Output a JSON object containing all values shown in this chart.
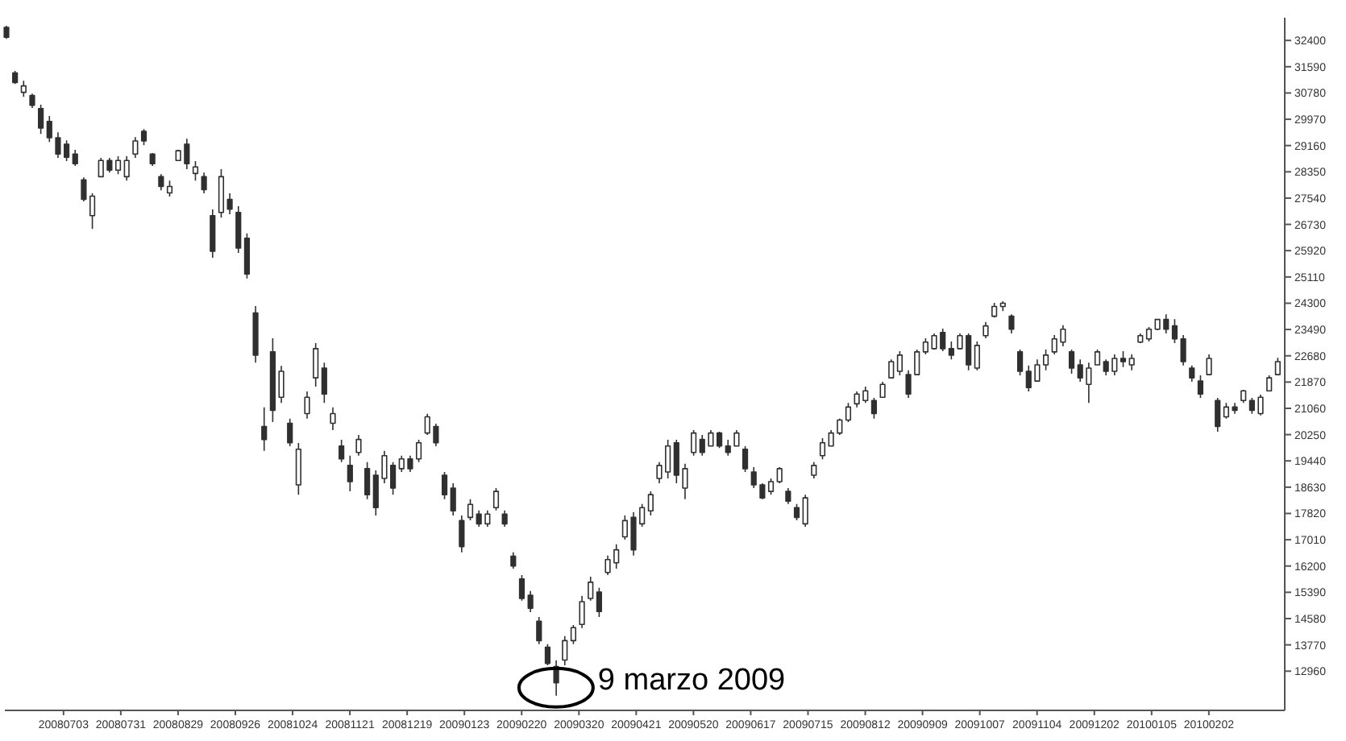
{
  "chart_data": {
    "type": "candlestick",
    "color": "#303030",
    "categories": [
      null,
      null,
      null,
      null,
      null,
      null,
      null,
      null,
      null,
      null,
      null,
      null,
      null,
      null,
      null,
      null,
      null,
      null,
      null,
      null,
      "20080703",
      null,
      null,
      null,
      null,
      null,
      null,
      null,
      null,
      null,
      null,
      null,
      null,
      null,
      null,
      null,
      null,
      null,
      null,
      null,
      "20080731",
      null,
      null,
      null,
      null,
      null,
      null,
      null,
      null,
      null,
      null,
      null,
      null,
      null,
      null,
      null,
      null,
      null,
      null,
      null,
      "20080829",
      null,
      null,
      null,
      null,
      null,
      null,
      null,
      null,
      null,
      null,
      null,
      null,
      null,
      null,
      null,
      null,
      null,
      null,
      null,
      "20080926",
      null,
      null,
      null,
      null,
      null,
      null,
      null,
      null,
      null,
      null,
      null,
      null,
      null,
      null,
      null,
      null,
      null,
      null,
      null,
      "20081024",
      null,
      null,
      null,
      null,
      null,
      null,
      null,
      null,
      null,
      null,
      null,
      null,
      null,
      null,
      null,
      null,
      null,
      null,
      null,
      "20081121",
      null,
      null,
      null,
      null,
      null,
      null,
      null,
      null,
      null,
      null,
      null,
      null,
      null,
      null,
      null,
      null,
      null,
      null,
      null,
      "20081219",
      null,
      null,
      null,
      null,
      null,
      null,
      null,
      null,
      null,
      null,
      null,
      null,
      null,
      null,
      null,
      null,
      null,
      null,
      null,
      "20090123",
      null,
      null,
      null,
      null,
      null,
      null,
      null,
      null,
      null,
      null,
      null,
      null,
      null,
      null,
      null,
      null,
      null,
      null,
      null,
      "20090220",
      null,
      null,
      null,
      null,
      null,
      null,
      null,
      null,
      null,
      null,
      null,
      null,
      null,
      null,
      null,
      null,
      null,
      null,
      null,
      "20090320",
      null,
      null,
      null,
      null,
      null,
      null,
      null,
      null,
      null,
      null,
      null,
      null,
      null,
      null,
      null,
      null,
      null,
      null,
      null,
      "20090421",
      null,
      null,
      null,
      null,
      null,
      null,
      null,
      null,
      null,
      null,
      null,
      null,
      null,
      null,
      null,
      null,
      null,
      null,
      null,
      "20090520",
      null,
      null,
      null,
      null,
      null,
      null,
      null,
      null,
      null,
      null,
      null,
      null,
      null,
      null,
      null,
      null,
      null,
      null,
      null,
      "20090617",
      null,
      null,
      null,
      null,
      null,
      null,
      null,
      null,
      null,
      null,
      null,
      null,
      null,
      null,
      null,
      null,
      null,
      null,
      null,
      "20090715",
      null,
      null,
      null,
      null,
      null,
      null,
      null,
      null,
      null,
      null,
      null,
      null,
      null,
      null,
      null,
      null,
      null,
      null,
      null,
      "20090812",
      null,
      null,
      null,
      null,
      null,
      null,
      null,
      null,
      null,
      null,
      null,
      null,
      null,
      null,
      null,
      null,
      null,
      null,
      null,
      "20090909",
      null,
      null,
      null,
      null,
      null,
      null,
      null,
      null,
      null,
      null,
      null,
      null,
      null,
      null,
      null,
      null,
      null,
      null,
      null,
      "20091007",
      null,
      null,
      null,
      null,
      null,
      null,
      null,
      null,
      null,
      null,
      null,
      null,
      null,
      null,
      null,
      null,
      null,
      null,
      null,
      "20091104",
      null,
      null,
      null,
      null,
      null,
      null,
      null,
      null,
      null,
      null,
      null,
      null,
      null,
      null,
      null,
      null,
      null,
      null,
      null,
      "20091202",
      null,
      null,
      null,
      null,
      null,
      null,
      null,
      null,
      null,
      null,
      null,
      null,
      null,
      null,
      null,
      null,
      null,
      null,
      null,
      "20100105",
      null,
      null,
      null,
      null,
      null,
      null,
      null,
      null,
      null,
      null,
      null,
      null,
      null,
      null,
      null,
      null,
      null,
      null,
      null,
      "20100202",
      null,
      null,
      null,
      null,
      null,
      null,
      null,
      null,
      null,
      null,
      null,
      null,
      null,
      null,
      null,
      null,
      null,
      null,
      null,
      null,
      null,
      null,
      null,
      null,
      null,
      null
    ],
    "ohlc": [
      [
        32800,
        32850,
        32450,
        32500
      ],
      null,
      null,
      [
        31400,
        31460,
        31060,
        31100
      ],
      null,
      null,
      [
        30800,
        31160,
        30660,
        31000
      ],
      null,
      null,
      [
        30700,
        30760,
        30320,
        30400
      ],
      null,
      null,
      [
        30300,
        30420,
        29520,
        29700
      ],
      null,
      null,
      [
        29900,
        30070,
        29270,
        29400
      ],
      null,
      null,
      [
        29400,
        29570,
        28780,
        28900
      ],
      null,
      null,
      [
        29200,
        29320,
        28680,
        28800
      ],
      null,
      null,
      [
        28900,
        29030,
        28530,
        28600
      ],
      null,
      null,
      [
        28100,
        28180,
        27440,
        27500
      ],
      null,
      null,
      [
        27000,
        27690,
        26590,
        27600
      ],
      null,
      null,
      [
        28200,
        28780,
        28180,
        28700
      ],
      null,
      null,
      [
        28700,
        28780,
        28330,
        28400
      ],
      null,
      null,
      [
        28400,
        28830,
        28280,
        28700
      ],
      null,
      null,
      [
        28200,
        28830,
        28080,
        28700
      ],
      null,
      null,
      [
        28900,
        29420,
        28780,
        29300
      ],
      null,
      null,
      [
        29600,
        29670,
        29170,
        29300
      ],
      null,
      null,
      [
        28900,
        28930,
        28530,
        28600
      ],
      null,
      null,
      [
        28200,
        28280,
        27780,
        27900
      ],
      null,
      null,
      [
        27700,
        28080,
        27590,
        27900
      ],
      null,
      null,
      [
        28700,
        29030,
        28680,
        29000
      ],
      null,
      null,
      [
        29200,
        29370,
        28430,
        28600
      ],
      null,
      null,
      [
        28300,
        28680,
        28080,
        28500
      ],
      null,
      null,
      [
        28200,
        28330,
        27690,
        27800
      ],
      null,
      null,
      [
        27000,
        27190,
        25700,
        25900
      ],
      null,
      null,
      [
        27100,
        28430,
        26940,
        28200
      ],
      null,
      null,
      [
        27500,
        27690,
        27040,
        27200
      ],
      null,
      null,
      [
        27100,
        27290,
        25850,
        26000
      ],
      null,
      null,
      [
        26300,
        26450,
        25060,
        25200
      ],
      null,
      null,
      [
        24000,
        24210,
        22470,
        22700
      ],
      null,
      null,
      [
        20500,
        21090,
        19750,
        20100
      ],
      null,
      null,
      [
        22800,
        23220,
        20640,
        21000
      ],
      null,
      null,
      [
        21400,
        22370,
        21230,
        22200
      ],
      null,
      null,
      [
        20600,
        20740,
        19890,
        20000
      ],
      null,
      null,
      [
        18700,
        19990,
        18400,
        19800
      ],
      null,
      null,
      [
        20900,
        21580,
        20740,
        21400
      ],
      null,
      null,
      [
        22000,
        23070,
        21730,
        22900
      ],
      null,
      null,
      [
        22300,
        22470,
        21230,
        21500
      ],
      null,
      null,
      [
        20600,
        21090,
        20390,
        20900
      ],
      null,
      null,
      [
        19900,
        20090,
        19400,
        19500
      ],
      null,
      null,
      [
        19300,
        19600,
        18500,
        18800
      ],
      null,
      null,
      [
        19700,
        20240,
        19600,
        20100
      ],
      null,
      null,
      [
        19200,
        19400,
        18260,
        18400
      ],
      null,
      null,
      [
        19000,
        19150,
        17760,
        18000
      ],
      null,
      null,
      [
        18900,
        19750,
        18750,
        19600
      ],
      null,
      null,
      [
        19300,
        19400,
        18400,
        18600
      ],
      null,
      null,
      [
        19200,
        19600,
        19100,
        19500
      ],
      null,
      null,
      [
        19500,
        19600,
        19100,
        19200
      ],
      null,
      null,
      [
        19500,
        20090,
        19400,
        20000
      ],
      null,
      null,
      [
        20300,
        20890,
        20240,
        20800
      ],
      null,
      null,
      [
        20500,
        20590,
        19890,
        20000
      ],
      null,
      null,
      [
        19000,
        19100,
        18260,
        18400
      ],
      null,
      null,
      [
        18600,
        18750,
        17760,
        17900
      ],
      null,
      null,
      [
        17600,
        17760,
        16620,
        16800
      ],
      null,
      null,
      [
        17700,
        18260,
        17610,
        18100
      ],
      null,
      null,
      [
        17800,
        17910,
        17410,
        17500
      ],
      null,
      null,
      [
        17500,
        17910,
        17410,
        17800
      ],
      null,
      null,
      [
        18000,
        18600,
        17910,
        18500
      ],
      null,
      null,
      [
        17800,
        17910,
        17410,
        17500
      ],
      null,
      null,
      [
        16500,
        16620,
        16120,
        16200
      ],
      null,
      null,
      [
        15800,
        15920,
        15130,
        15200
      ],
      null,
      null,
      [
        15300,
        15430,
        14780,
        14900
      ],
      null,
      null,
      [
        14500,
        14630,
        13790,
        13900
      ],
      null,
      null,
      [
        13700,
        13790,
        13140,
        13200
      ],
      null,
      null,
      [
        13100,
        13290,
        12200,
        12600
      ],
      null,
      null,
      [
        13300,
        14040,
        13140,
        13900
      ],
      null,
      null,
      [
        13900,
        14380,
        13790,
        14300
      ],
      null,
      null,
      [
        14400,
        15280,
        14290,
        15100
      ],
      null,
      null,
      [
        15200,
        15870,
        15130,
        15700
      ],
      null,
      null,
      [
        15400,
        15530,
        14630,
        14800
      ],
      null,
      null,
      [
        16000,
        16520,
        15920,
        16400
      ],
      null,
      null,
      [
        16300,
        16870,
        16120,
        16700
      ],
      null,
      null,
      [
        17100,
        17760,
        17010,
        17600
      ],
      null,
      null,
      [
        17700,
        17860,
        16520,
        16700
      ],
      null,
      null,
      [
        17500,
        18110,
        17410,
        18000
      ],
      null,
      null,
      [
        17900,
        18500,
        17760,
        18400
      ],
      null,
      null,
      [
        18900,
        19400,
        18750,
        19300
      ],
      null,
      null,
      [
        19100,
        20090,
        18900,
        19900
      ],
      null,
      null,
      [
        20000,
        20090,
        18750,
        19000
      ],
      null,
      null,
      [
        18600,
        19350,
        18260,
        19200
      ],
      null,
      null,
      [
        19700,
        20390,
        19600,
        20300
      ],
      null,
      null,
      [
        20100,
        20240,
        19600,
        19700
      ],
      null,
      null,
      [
        19900,
        20390,
        19890,
        20300
      ],
      null,
      null,
      [
        20300,
        20340,
        19840,
        19900
      ],
      null,
      null,
      [
        19900,
        20090,
        19600,
        19700
      ],
      null,
      null,
      [
        19900,
        20390,
        19890,
        20300
      ],
      null,
      null,
      [
        19800,
        19890,
        19100,
        19200
      ],
      null,
      null,
      [
        19100,
        19250,
        18600,
        18700
      ],
      null,
      null,
      [
        18700,
        18750,
        18260,
        18300
      ],
      null,
      null,
      [
        18500,
        18900,
        18400,
        18800
      ],
      null,
      null,
      [
        18800,
        19250,
        18750,
        19200
      ],
      null,
      null,
      [
        18500,
        18600,
        18110,
        18200
      ],
      null,
      null,
      [
        18000,
        18110,
        17610,
        17700
      ],
      null,
      null,
      [
        17500,
        18400,
        17410,
        18300
      ],
      null,
      null,
      [
        19000,
        19400,
        18900,
        19300
      ],
      null,
      null,
      [
        19600,
        20140,
        19490,
        20000
      ],
      null,
      null,
      [
        19900,
        20390,
        19890,
        20300
      ],
      null,
      null,
      [
        20300,
        20740,
        20240,
        20700
      ],
      null,
      null,
      [
        20700,
        21230,
        20640,
        21100
      ],
      null,
      null,
      [
        21200,
        21580,
        21090,
        21500
      ],
      null,
      null,
      [
        21300,
        21730,
        21230,
        21600
      ],
      null,
      null,
      [
        21300,
        21380,
        20740,
        20900
      ],
      null,
      null,
      [
        21400,
        21880,
        21380,
        21800
      ],
      null,
      null,
      [
        22000,
        22570,
        21980,
        22500
      ],
      null,
      null,
      [
        22200,
        22820,
        22080,
        22700
      ],
      null,
      null,
      [
        22100,
        22230,
        21380,
        21500
      ],
      null,
      null,
      [
        22100,
        22870,
        22080,
        22800
      ],
      null,
      null,
      [
        22800,
        23220,
        22720,
        23100
      ],
      null,
      null,
      [
        22900,
        23370,
        22870,
        23300
      ],
      null,
      null,
      [
        23400,
        23520,
        22820,
        22900
      ],
      null,
      null,
      [
        22900,
        23120,
        22570,
        22700
      ],
      null,
      null,
      [
        22900,
        23370,
        22870,
        23300
      ],
      null,
      null,
      [
        23300,
        23370,
        22230,
        22400
      ],
      null,
      null,
      [
        22300,
        23120,
        22230,
        23000
      ],
      null,
      null,
      [
        23300,
        23720,
        23220,
        23600
      ],
      null,
      null,
      [
        23900,
        24310,
        23860,
        24200
      ],
      null,
      null,
      [
        24200,
        24360,
        24060,
        24300
      ],
      null,
      null,
      [
        23900,
        23960,
        23370,
        23500
      ],
      null,
      null,
      [
        22800,
        22870,
        22080,
        22200
      ],
      null,
      null,
      [
        22200,
        22380,
        21580,
        21700
      ],
      null,
      null,
      [
        21900,
        22570,
        21880,
        22400
      ],
      null,
      null,
      [
        22400,
        22870,
        22230,
        22700
      ],
      null,
      null,
      [
        22800,
        23320,
        22720,
        23200
      ],
      null,
      null,
      [
        23100,
        23620,
        22970,
        23500
      ],
      null,
      null,
      [
        22800,
        22870,
        22130,
        22300
      ],
      null,
      null,
      [
        22400,
        22570,
        21880,
        22000
      ],
      null,
      null,
      [
        21800,
        22470,
        21230,
        22300
      ],
      null,
      null,
      [
        22400,
        22870,
        22380,
        22800
      ],
      null,
      null,
      [
        22500,
        22570,
        22080,
        22200
      ],
      null,
      null,
      [
        22200,
        22720,
        22080,
        22600
      ],
      null,
      null,
      [
        22600,
        22820,
        22330,
        22500
      ],
      null,
      null,
      [
        22400,
        22720,
        22230,
        22600
      ],
      null,
      null,
      [
        23100,
        23370,
        23070,
        23300
      ],
      null,
      null,
      [
        23200,
        23570,
        23120,
        23500
      ],
      null,
      null,
      [
        23500,
        23810,
        23470,
        23800
      ],
      null,
      null,
      [
        23800,
        23960,
        23370,
        23500
      ],
      null,
      null,
      [
        23600,
        23810,
        23070,
        23200
      ],
      null,
      null,
      [
        23200,
        23320,
        22380,
        22500
      ],
      null,
      null,
      [
        22300,
        22380,
        21880,
        22000
      ],
      null,
      null,
      [
        21900,
        22080,
        21380,
        21500
      ],
      null,
      null,
      [
        22100,
        22720,
        22080,
        22600
      ],
      null,
      null,
      [
        21300,
        21380,
        20340,
        20500
      ],
      null,
      null,
      [
        20800,
        21230,
        20740,
        21100
      ],
      null,
      null,
      [
        21100,
        21230,
        20890,
        21000
      ],
      null,
      null,
      [
        21300,
        21630,
        21230,
        21600
      ],
      null,
      null,
      [
        21300,
        21380,
        20890,
        21000
      ],
      null,
      null,
      [
        20900,
        21480,
        20840,
        21400
      ],
      null,
      null,
      [
        21600,
        22080,
        21580,
        22000
      ],
      null,
      null,
      [
        22100,
        22620,
        22080,
        22500
      ],
      null,
      null
    ],
    "ylim": [
      11750,
      33100
    ],
    "yticks": [
      12960,
      13770,
      14580,
      15390,
      16200,
      17010,
      17820,
      18630,
      19440,
      20250,
      21060,
      21870,
      22680,
      23490,
      24300,
      25110,
      25920,
      26730,
      27540,
      28350,
      29160,
      29970,
      30780,
      31590,
      32400
    ],
    "annotations": [
      "9 marzo 2009"
    ]
  }
}
